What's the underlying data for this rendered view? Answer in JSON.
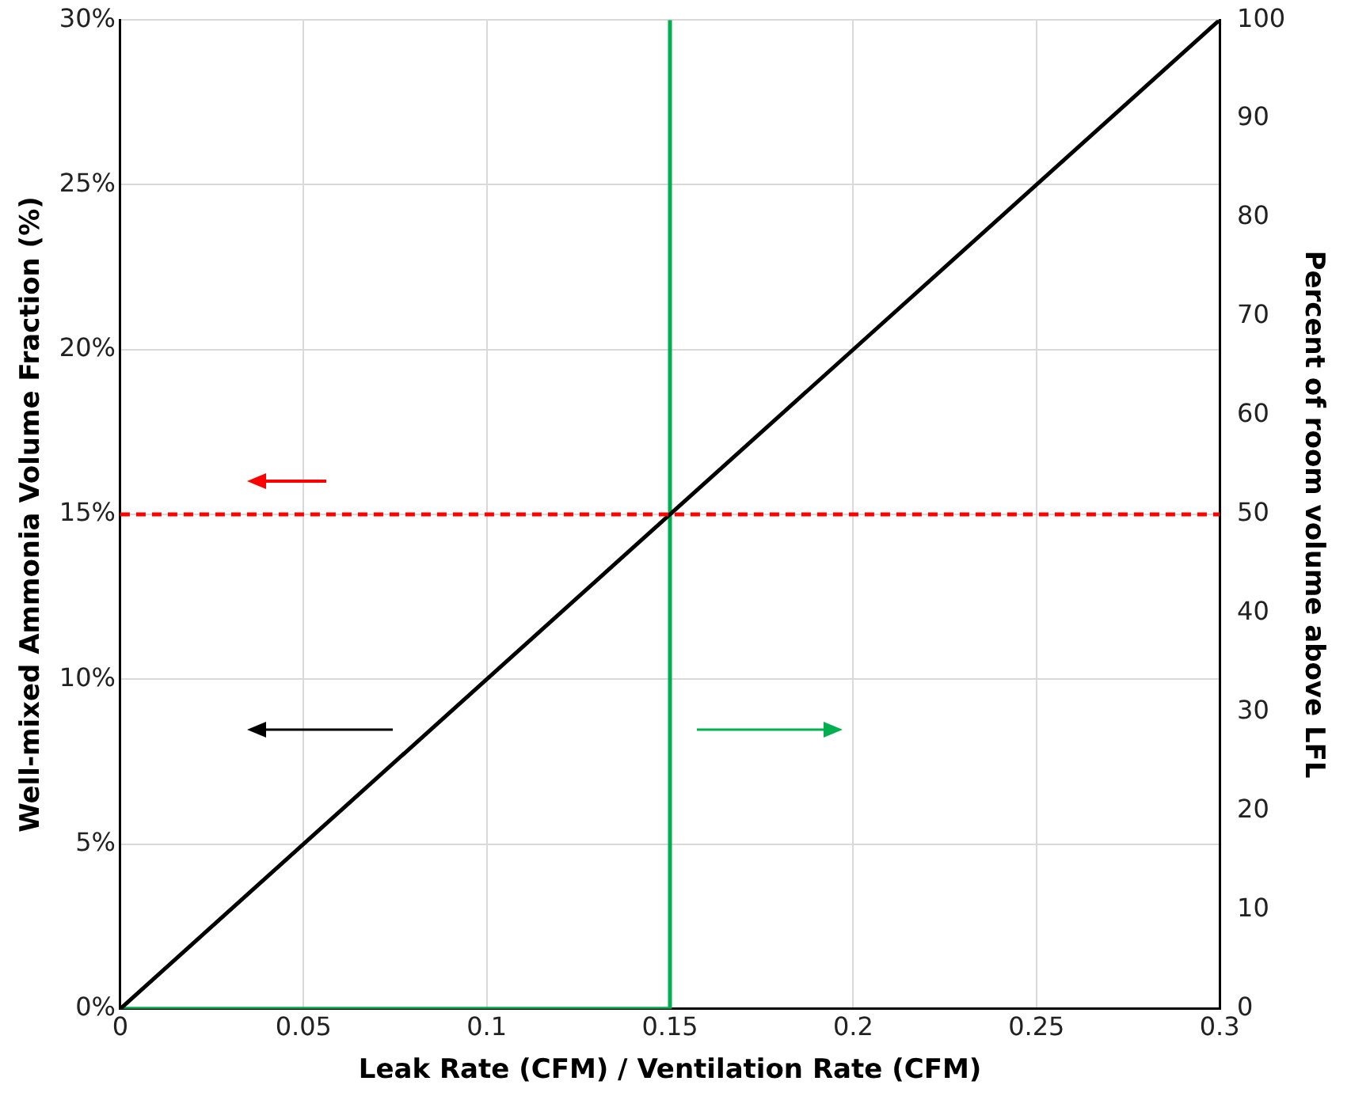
{
  "chart_data": {
    "type": "line",
    "xlabel": "Leak Rate (CFM) / Ventilation Rate (CFM)",
    "ylabel": "Well-mixed Ammonia Volume Fraction (%)",
    "y2label": "Percent of room volume above LFL",
    "series": [
      {
        "color": "#000000",
        "x": [
          0,
          0.3
        ],
        "values": [
          0,
          30
        ]
      },
      {
        "color": "#00b050",
        "x": [
          0,
          0.15,
          0.15
        ],
        "values": [
          0,
          0,
          100
        ],
        "axis": "y2"
      }
    ],
    "xlim": [
      0,
      0.3
    ],
    "xticks": [
      0,
      0.05,
      0.1,
      0.15,
      0.2,
      0.25,
      0.3
    ],
    "ylim": [
      0,
      30
    ],
    "yticks": [
      {
        "value": 0,
        "label": "0%"
      },
      {
        "value": 5,
        "label": "5%"
      },
      {
        "value": 10,
        "label": "10%"
      },
      {
        "value": 15,
        "label": "15%"
      },
      {
        "value": 20,
        "label": "20%"
      },
      {
        "value": 25,
        "label": "25%"
      },
      {
        "value": 30,
        "label": "30%"
      }
    ],
    "y2lim": [
      0,
      100
    ],
    "y2ticks": [
      0,
      10,
      20,
      30,
      40,
      50,
      60,
      70,
      80,
      90,
      100
    ],
    "ref_lines": [
      {
        "axis": "y",
        "value": 15,
        "color": "#ff0000",
        "line_style": "dashed"
      }
    ],
    "grid": true,
    "legend": false,
    "marker": "none",
    "line_style": "solid"
  }
}
